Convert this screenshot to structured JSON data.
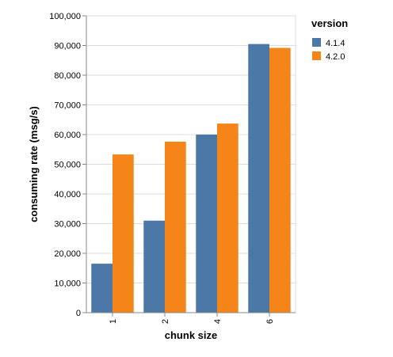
{
  "chart_data": {
    "type": "bar",
    "categories": [
      "1",
      "2",
      "4",
      "6"
    ],
    "series": [
      {
        "name": "4.1.4",
        "values": [
          16500,
          31000,
          60000,
          90500
        ],
        "color": "#4c78a8"
      },
      {
        "name": "4.2.0",
        "values": [
          53300,
          57600,
          63700,
          89200
        ],
        "color": "#f58518"
      }
    ],
    "xlabel": "chunk size",
    "ylabel": "consuming rate (msg/s)",
    "ylim": [
      0,
      100000
    ],
    "yticks": [
      0,
      10000,
      20000,
      30000,
      40000,
      50000,
      60000,
      70000,
      80000,
      90000,
      100000
    ],
    "ytick_labels": [
      "0",
      "10,000",
      "20,000",
      "30,000",
      "40,000",
      "50,000",
      "60,000",
      "70,000",
      "80,000",
      "90,000",
      "100,000"
    ],
    "grid": true,
    "legend": {
      "title": "version",
      "placement": "top-right"
    }
  }
}
